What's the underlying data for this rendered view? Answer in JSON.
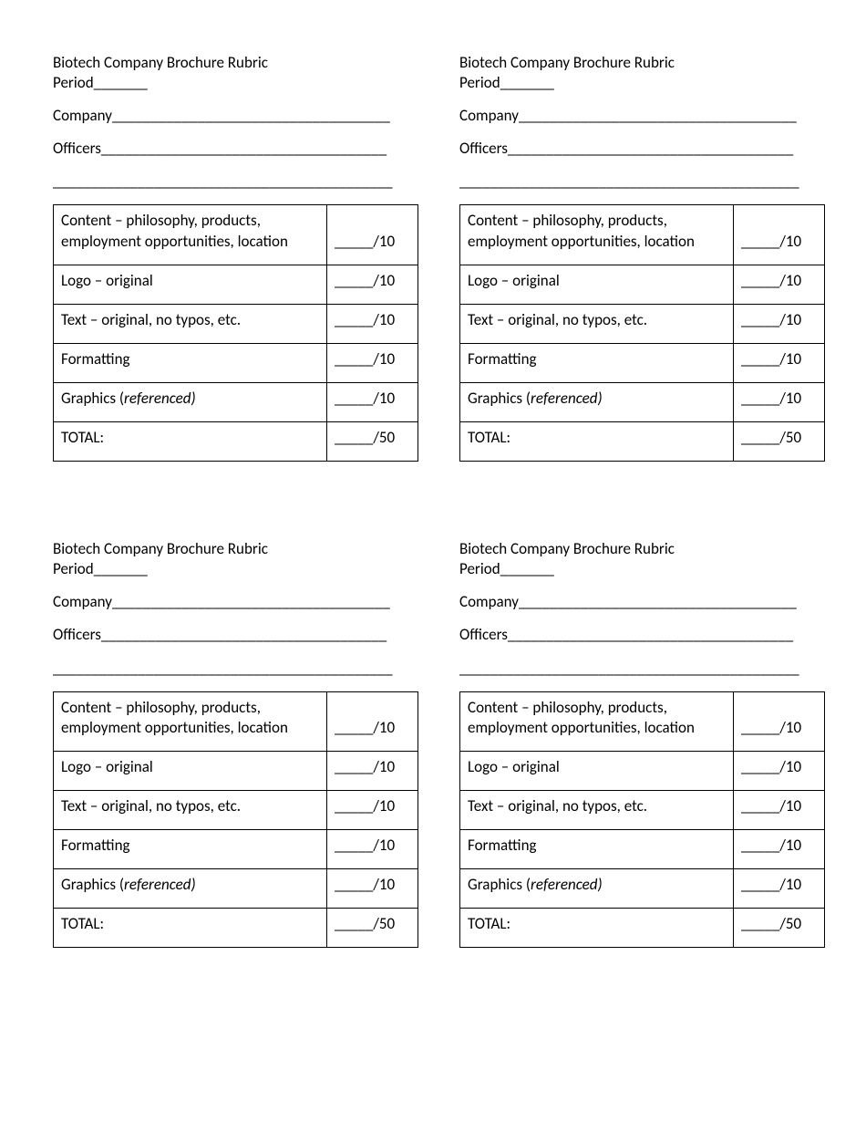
{
  "rubric": {
    "title": "Biotech Company Brochure Rubric",
    "period_label": "Period",
    "period_blank": "_______",
    "company_label": "Company",
    "company_blank": "____________________________________",
    "officers_label": "Officers",
    "officers_blank": "_____________________________________",
    "extra_line": "____________________________________________",
    "rows": [
      {
        "label_main": "Content – philosophy, products, employment opportunities, location",
        "score": "_____/10"
      },
      {
        "label_main": "Logo – original",
        "score": "_____/10"
      },
      {
        "label_main": "Text – original, no typos, etc.",
        "score": "_____/10"
      },
      {
        "label_main": "Formatting",
        "score": "_____/10"
      },
      {
        "label_prefix": "Graphics (",
        "label_italic": "referenced)",
        "score": "_____/10"
      },
      {
        "label_main": "TOTAL:",
        "score": "_____/50"
      }
    ]
  },
  "layout": {
    "copies": 4,
    "columns": 2,
    "background_color": "#ffffff",
    "text_color": "#000000",
    "border_color": "#000000",
    "font_size_pt": 13
  }
}
